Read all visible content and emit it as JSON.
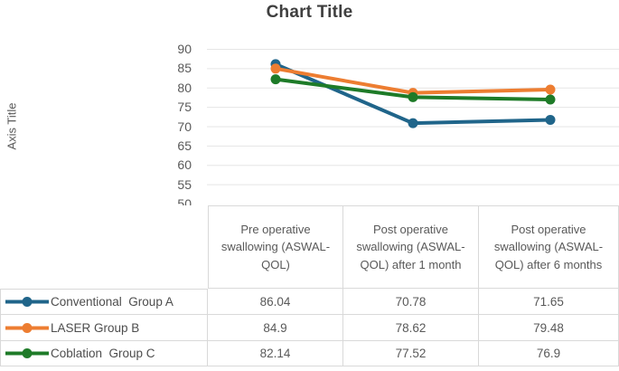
{
  "chart_data": {
    "type": "line",
    "title": "Chart Title",
    "y_axis_title": "Axis Title",
    "xlabel": "",
    "ylabel": "Axis Title",
    "categories": [
      "Pre operative swallowing (ASWAL-QOL)",
      "Post operative swallowing (ASWAL-QOL) after 1 month",
      "Post operative swallowing (ASWAL-QOL) after 6 months"
    ],
    "series": [
      {
        "name": "Conventional  Group A",
        "values": [
          86.04,
          70.78,
          71.65
        ],
        "color": "#20658A"
      },
      {
        "name": "LASER Group B",
        "values": [
          84.9,
          78.62,
          79.48
        ],
        "color": "#ED7D31"
      },
      {
        "name": "Coblation  Group C",
        "values": [
          82.14,
          77.52,
          76.9
        ],
        "color": "#1E7B28"
      }
    ],
    "ylim": [
      50,
      90
    ],
    "ytick_step": 5,
    "yticks": [
      90,
      85,
      80,
      75,
      70,
      65,
      60,
      55,
      50
    ],
    "grid": "horizontal",
    "gridline_color": "#E5E5E5",
    "table_border_color": "#D9D9D9",
    "legend_position": "data-table-left",
    "marker": "circle"
  }
}
